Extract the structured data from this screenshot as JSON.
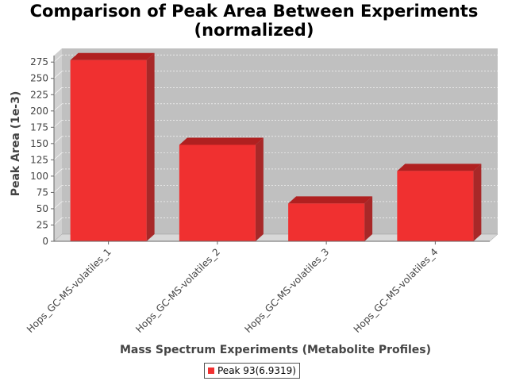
{
  "chart_data": {
    "type": "bar",
    "title": "Comparison of Peak Area Between Experiments\n(normalized)",
    "xlabel": "Mass Spectrum Experiments (Metabolite Profiles)",
    "ylabel": "Peak Area (1e-3)",
    "categories": [
      "Hops_GC-MS-volatiles_1",
      "Hops_GC-MS-volatiles_2",
      "Hops_GC-MS-volatiles_3",
      "Hops_GC-MS-volatiles_4"
    ],
    "series": [
      {
        "name": "Peak 93(6.9319)",
        "values": [
          278,
          148,
          58,
          108
        ]
      }
    ],
    "ylim": [
      0,
      285
    ],
    "yticks": [
      0,
      25,
      50,
      75,
      100,
      125,
      150,
      175,
      200,
      225,
      250,
      275
    ],
    "grid": true,
    "legend_position": "bottom",
    "style": "3d-bar",
    "colors": {
      "bar_front": "#f03030",
      "bar_top": "#b02020",
      "bar_side": "#a82828",
      "plot_back": "#c0c0c0",
      "plot_wall": "#d0d0d0",
      "floor": "#d8d8d8"
    }
  }
}
